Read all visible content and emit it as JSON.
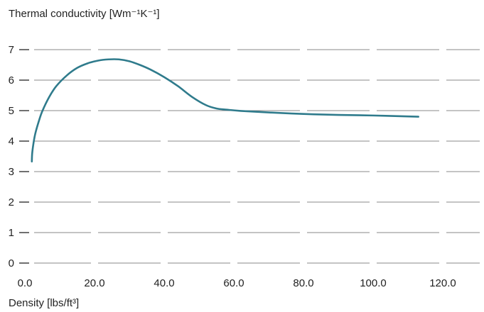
{
  "chart_data": {
    "type": "line",
    "ylabel": "Thermal conductivity [Wm⁻¹K⁻¹]",
    "xlabel": "Density [lbs/ft³]",
    "xlim": [
      0,
      125
    ],
    "ylim": [
      0,
      7
    ],
    "x_ticks": [
      0,
      20,
      40,
      60,
      80,
      100,
      120
    ],
    "x_tick_labels": [
      "0.0",
      "20.0",
      "40.0",
      "60.0",
      "80.0",
      "100.0",
      "120.0"
    ],
    "y_ticks": [
      0,
      1,
      2,
      3,
      4,
      5,
      6,
      7
    ],
    "y_tick_labels": [
      "0",
      "1",
      "2",
      "3",
      "4",
      "5",
      "6",
      "7"
    ],
    "grid": "horizontal",
    "series": [
      {
        "color": "#2f7b8c",
        "x": [
          2,
          2.1,
          2.5,
          3,
          4,
          5,
          7,
          9,
          12,
          15,
          18,
          21,
          24,
          27,
          30,
          33,
          36,
          40,
          44,
          48,
          52,
          55,
          58,
          62,
          70,
          80,
          90,
          100,
          110,
          113
        ],
        "y": [
          3.33,
          3.6,
          3.95,
          4.25,
          4.65,
          4.98,
          5.45,
          5.8,
          6.15,
          6.4,
          6.55,
          6.64,
          6.68,
          6.68,
          6.62,
          6.5,
          6.35,
          6.1,
          5.8,
          5.45,
          5.18,
          5.07,
          5.03,
          4.99,
          4.94,
          4.89,
          4.86,
          4.84,
          4.81,
          4.8
        ]
      }
    ]
  }
}
